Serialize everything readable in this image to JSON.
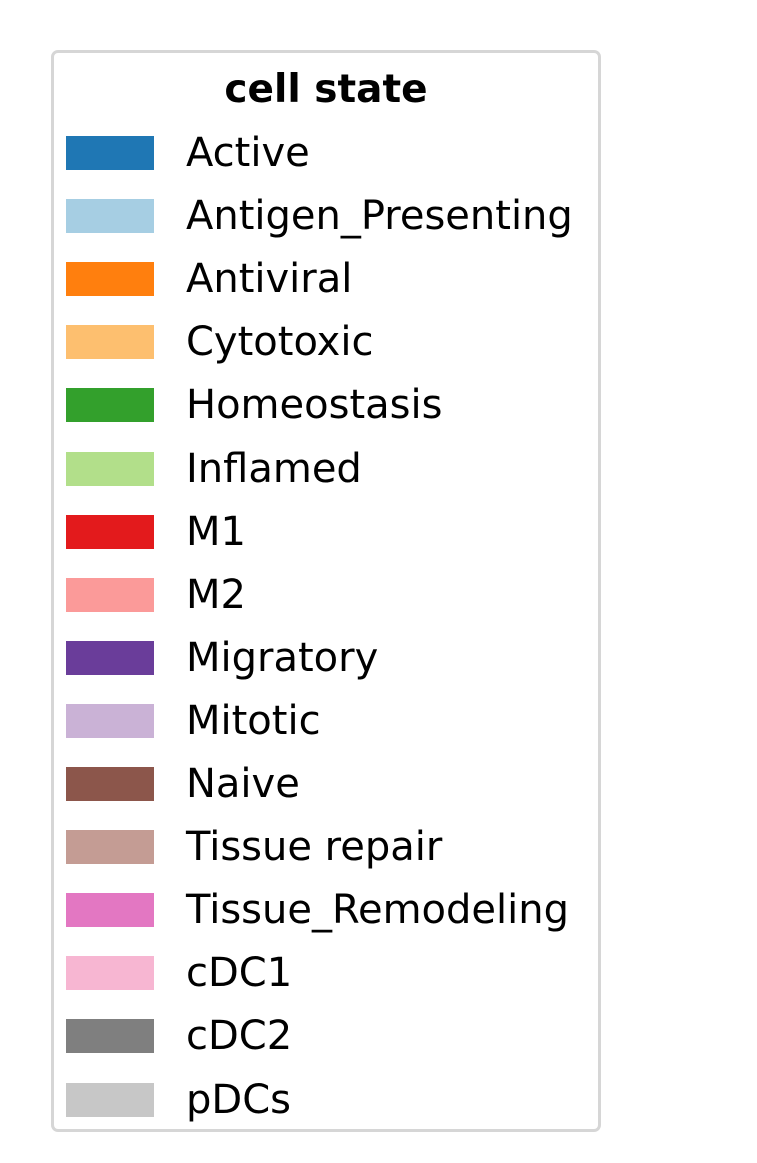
{
  "chart_data": {
    "type": "legend",
    "title": "cell state",
    "entries": [
      {
        "label": "Active",
        "color": "#1f77b4"
      },
      {
        "label": "Antigen_Presenting",
        "color": "#a6cee3"
      },
      {
        "label": "Antiviral",
        "color": "#ff7f0e"
      },
      {
        "label": "Cytotoxic",
        "color": "#fdbf6f"
      },
      {
        "label": "Homeostasis",
        "color": "#33a02c"
      },
      {
        "label": "Inflamed",
        "color": "#b2df8a"
      },
      {
        "label": "M1",
        "color": "#e31a1c"
      },
      {
        "label": "M2",
        "color": "#fb9a99"
      },
      {
        "label": "Migratory",
        "color": "#6a3d9a"
      },
      {
        "label": "Mitotic",
        "color": "#cab2d6"
      },
      {
        "label": "Naive",
        "color": "#8c564b"
      },
      {
        "label": "Tissue repair",
        "color": "#c49c94"
      },
      {
        "label": "Tissue_Remodeling",
        "color": "#e377c2"
      },
      {
        "label": "cDC1",
        "color": "#f7b6d2"
      },
      {
        "label": "cDC2",
        "color": "#7f7f7f"
      },
      {
        "label": "pDCs",
        "color": "#c7c7c7"
      }
    ]
  }
}
